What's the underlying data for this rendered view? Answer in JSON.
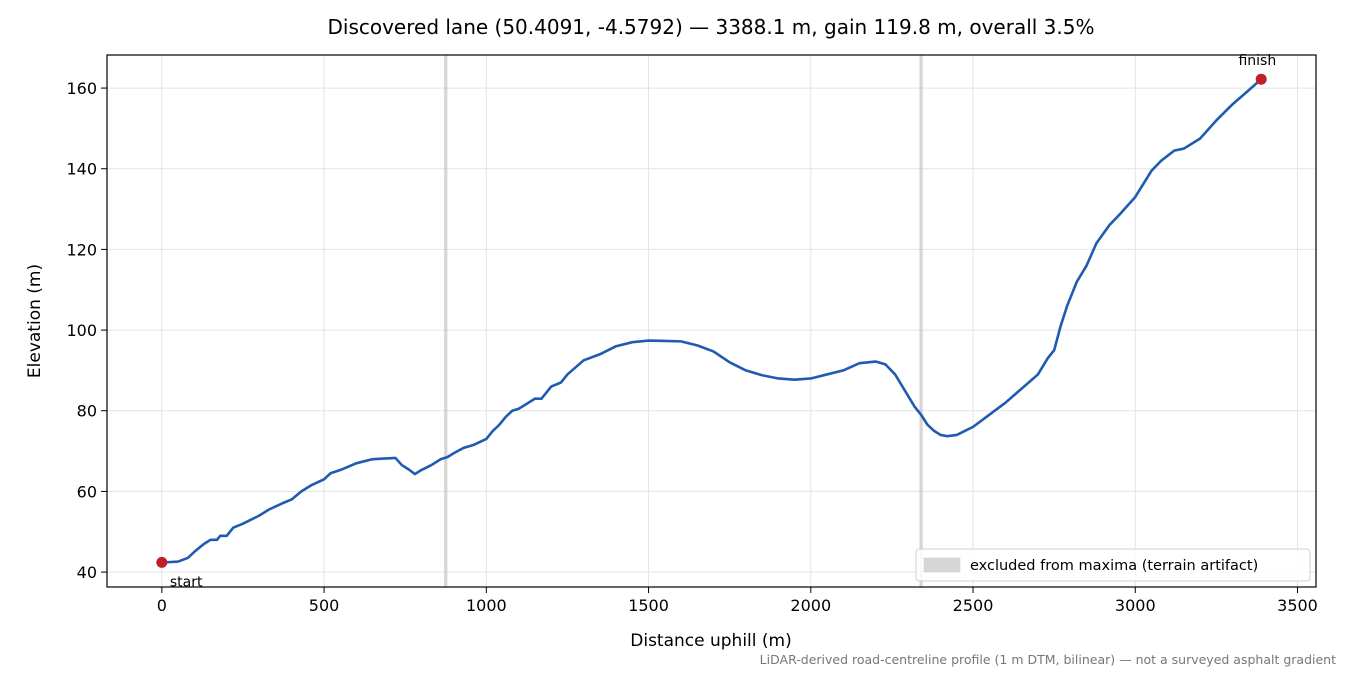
{
  "chart_data": {
    "type": "line",
    "title": "Discovered lane (50.4091, -4.5792) — 3388.1 m, gain 119.8 m, overall 3.5%",
    "x_label": "Distance uphill (m)",
    "y_label": "Elevation (m)",
    "note": "LiDAR-derived road-centreline profile (1 m DTM, bilinear) — not a surveyed asphalt gradient",
    "color": "#1f5bb0",
    "x": [
      0,
      30,
      50,
      80,
      100,
      130,
      150,
      170,
      180,
      200,
      220,
      250,
      300,
      330,
      370,
      400,
      430,
      460,
      500,
      520,
      550,
      600,
      650,
      700,
      720,
      740,
      760,
      780,
      800,
      830,
      860,
      880,
      900,
      930,
      960,
      1000,
      1020,
      1040,
      1060,
      1080,
      1100,
      1130,
      1150,
      1170,
      1200,
      1230,
      1250,
      1300,
      1350,
      1400,
      1450,
      1500,
      1550,
      1600,
      1650,
      1700,
      1750,
      1800,
      1850,
      1900,
      1950,
      2000,
      2050,
      2100,
      2150,
      2200,
      2230,
      2260,
      2290,
      2320,
      2340,
      2360,
      2380,
      2400,
      2420,
      2450,
      2500,
      2550,
      2600,
      2650,
      2700,
      2730,
      2750,
      2770,
      2790,
      2800,
      2820,
      2850,
      2880,
      2920,
      2950,
      3000,
      3050,
      3080,
      3120,
      3150,
      3200,
      3250,
      3300,
      3350,
      3388.1
    ],
    "values": [
      42.4,
      42.5,
      42.6,
      43.5,
      45,
      47,
      48,
      48,
      49,
      49,
      51,
      52,
      54,
      55.5,
      57,
      58,
      60,
      61.5,
      63,
      64.5,
      65.3,
      67,
      68,
      68.2,
      68.3,
      66.5,
      65.5,
      64.3,
      65.3,
      66.5,
      68,
      68.5,
      69.5,
      70.8,
      71.5,
      73,
      75,
      76.5,
      78.5,
      80,
      80.5,
      82,
      83,
      83,
      86,
      87,
      89,
      92.5,
      94,
      96,
      97,
      97.4,
      97.3,
      97.2,
      96.2,
      94.7,
      92,
      90,
      88.8,
      88,
      87.7,
      88,
      89,
      90,
      91.8,
      92.2,
      91.5,
      89,
      85,
      81,
      79,
      76.5,
      75,
      74,
      73.7,
      74,
      76,
      79,
      82,
      85.5,
      89,
      93,
      95,
      101,
      106,
      108,
      112,
      116,
      121.5,
      126,
      128.5,
      133,
      139.5,
      142,
      144.5,
      145,
      147.5,
      152,
      156,
      159.5,
      162.2
    ],
    "start": {
      "x": 0,
      "y": 42.4,
      "label": "start"
    },
    "finish": {
      "x": 3388.1,
      "y": 162.2,
      "label": "finish"
    },
    "marker_color": "#c0202a",
    "excluded_bands": [
      [
        870,
        880
      ],
      [
        2335,
        2345
      ]
    ],
    "band_label": "excluded from maxima (terrain artifact)",
    "band_color": "#bbbbbb",
    "legend": "lower right",
    "grid": true,
    "xlim": [
      -169,
      3557
    ],
    "ylim": [
      36.3,
      168.2
    ],
    "xticks": [
      0,
      500,
      1000,
      1500,
      2000,
      2500,
      3000,
      3500
    ],
    "yticks": [
      40,
      60,
      80,
      100,
      120,
      140,
      160
    ]
  }
}
